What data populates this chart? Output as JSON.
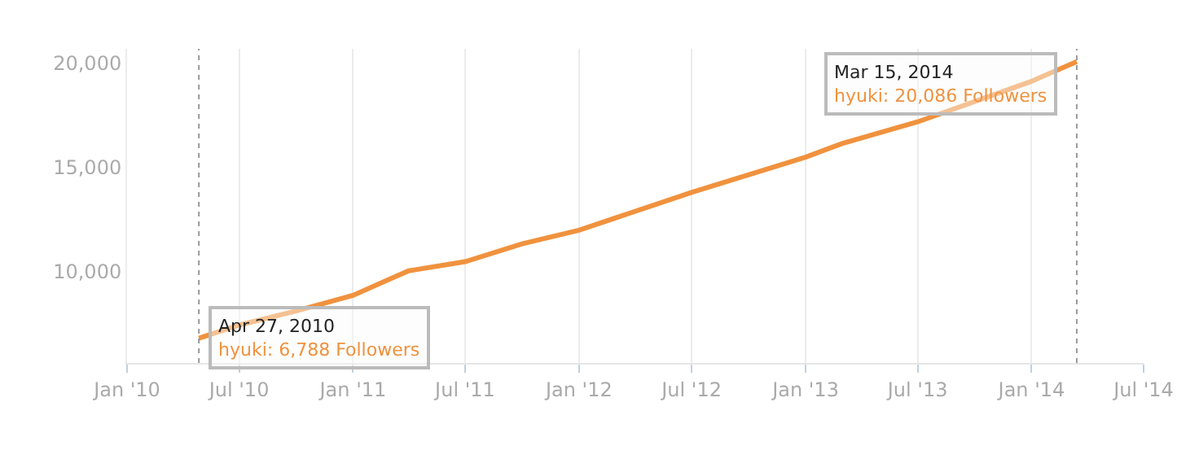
{
  "chart_data": {
    "type": "line",
    "x": [
      "2010-04-27",
      "2010-07-01",
      "2010-10-01",
      "2011-01-01",
      "2011-03-01",
      "2011-04-01",
      "2011-07-01",
      "2011-10-01",
      "2012-01-01",
      "2012-07-01",
      "2013-01-01",
      "2013-03-01",
      "2013-07-01",
      "2014-01-01",
      "2014-03-15"
    ],
    "series": [
      {
        "color": "#f0923e",
        "values": [
          6788,
          7420,
          8100,
          8850,
          9630,
          10030,
          10470,
          11330,
          11980,
          13800,
          15490,
          16150,
          17190,
          19140,
          20086
        ]
      }
    ],
    "xlim": [
      "2010-01-01",
      "2014-07-01"
    ],
    "xticks": [
      {
        "value": "2010-01-01",
        "label": "Jan '10"
      },
      {
        "value": "2010-07-01",
        "label": "Jul '10"
      },
      {
        "value": "2011-01-01",
        "label": "Jan '11"
      },
      {
        "value": "2011-07-01",
        "label": "Jul '11"
      },
      {
        "value": "2012-01-01",
        "label": "Jan '12"
      },
      {
        "value": "2012-07-01",
        "label": "Jul '12"
      },
      {
        "value": "2013-01-01",
        "label": "Jan '13"
      },
      {
        "value": "2013-07-01",
        "label": "Jul '13"
      },
      {
        "value": "2014-01-01",
        "label": "Jan '14"
      },
      {
        "value": "2014-07-01",
        "label": "Jul '14"
      }
    ],
    "ylim": [
      5600,
      20700
    ],
    "yticks": [
      {
        "value": 10000,
        "label": "10,000"
      },
      {
        "value": 15000,
        "label": "15,000"
      },
      {
        "value": 20000,
        "label": "20,000"
      }
    ],
    "grid": "x",
    "legend": false,
    "marker": "none",
    "line_style": "solid",
    "ref_lines": [
      {
        "axis": "x",
        "value": "2010-04-27",
        "color": "#999999",
        "line_style": "dotted"
      },
      {
        "axis": "x",
        "value": "2014-03-15",
        "color": "#999999",
        "line_style": "dotted"
      }
    ],
    "annotations": [
      {
        "text": "Apr 27, 2010\nhyuki: 6,788 Followers",
        "x": "2010-04-27",
        "y": 6788
      },
      {
        "text": "Mar 15, 2014\nhyuki: 20,086 Followers",
        "x": "2014-03-15",
        "y": 20086
      }
    ]
  }
}
